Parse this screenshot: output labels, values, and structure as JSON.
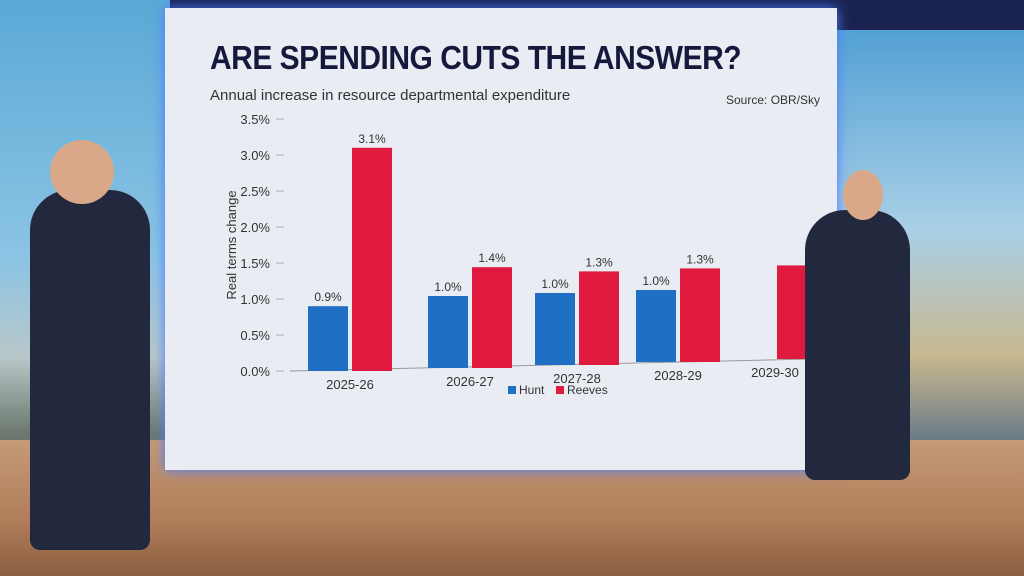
{
  "colors": {
    "hunt": "#1f6fc4",
    "reeves": "#e01a3f",
    "text": "#333333",
    "title": "#151a3c"
  },
  "header": {
    "title": "ARE SPENDING CUTS THE ANSWER?",
    "subtitle": "Annual increase in resource departmental expenditure",
    "source": "Source: OBR/Sky"
  },
  "chart_data": {
    "type": "bar",
    "title": "ARE SPENDING CUTS THE ANSWER?",
    "subtitle": "Annual increase in resource departmental expenditure",
    "ylabel": "Real terms change",
    "xlabel": "",
    "ylim": [
      0,
      3.5
    ],
    "yticks": [
      "0.0%",
      "0.5%",
      "1.0%",
      "1.5%",
      "2.0%",
      "2.5%",
      "3.0%",
      "3.5%"
    ],
    "categories": [
      "2025-26",
      "2026-27",
      "2027-28",
      "2028-29",
      "2029-30"
    ],
    "series": [
      {
        "name": "Hunt",
        "values": [
          0.9,
          1.0,
          1.0,
          1.0,
          null
        ],
        "labels": [
          "0.9%",
          "1.0%",
          "1.0%",
          "1.0%",
          null
        ]
      },
      {
        "name": "Reeves",
        "values": [
          3.1,
          1.4,
          1.3,
          1.3,
          1.3
        ],
        "labels": [
          "3.1%",
          "1.4%",
          "1.3%",
          "1.3%",
          null
        ]
      }
    ],
    "legend": "bottom-center",
    "grid": false
  }
}
